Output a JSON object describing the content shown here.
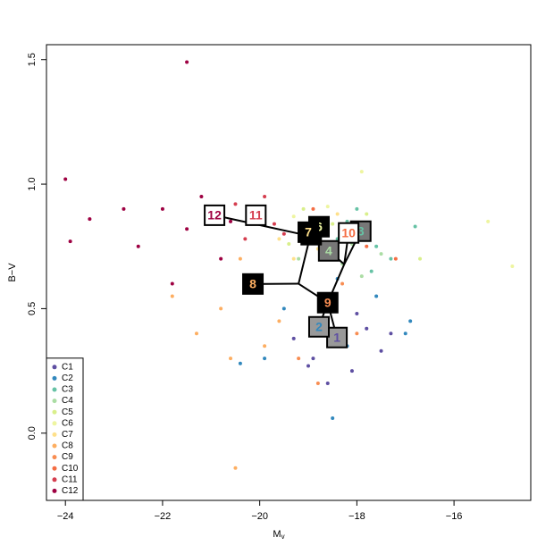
{
  "chart_data": {
    "type": "scatter",
    "xlabel": "M",
    "xlabel_sub": "v",
    "ylabel": "B−V",
    "xlim": [
      -24.39,
      -14.42
    ],
    "ylim": [
      -0.27,
      1.56
    ],
    "xticks": [
      {
        "value": -24,
        "label": "−24"
      },
      {
        "value": -22,
        "label": "−22"
      },
      {
        "value": -20,
        "label": "−20"
      },
      {
        "value": -18,
        "label": "−18"
      },
      {
        "value": -16,
        "label": "−16"
      }
    ],
    "yticks": [
      {
        "value": 0,
        "label": "0.0"
      },
      {
        "value": 0.5,
        "label": "0.5"
      },
      {
        "value": 1,
        "label": "1.0"
      },
      {
        "value": 1.5,
        "label": "1.5"
      }
    ],
    "legend": "bottomleft",
    "series": [
      {
        "name": "C1",
        "color": "#5E4FA2",
        "x": [
          -18.4,
          -18.9,
          -17.8,
          -18.1,
          -19.3,
          -17.5,
          -18.6,
          -18.0,
          -19.0,
          -17.3
        ],
        "values": [
          0.36,
          0.3,
          0.42,
          0.25,
          0.38,
          0.33,
          0.2,
          0.48,
          0.27,
          0.4
        ]
      },
      {
        "name": "C2",
        "color": "#3288BD",
        "x": [
          -18.8,
          -19.5,
          -18.2,
          -17.6,
          -19.9,
          -18.5,
          -16.9,
          -18.4,
          -20.4,
          -17.0
        ],
        "values": [
          0.44,
          0.5,
          0.35,
          0.55,
          0.3,
          0.06,
          0.45,
          0.62,
          0.28,
          0.4
        ]
      },
      {
        "name": "C3",
        "color": "#66C2A5",
        "x": [
          -17.9,
          -17.6,
          -18.2,
          -17.3,
          -18.0,
          -16.8,
          -17.7,
          -18.4
        ],
        "values": [
          0.8,
          0.75,
          0.85,
          0.7,
          0.9,
          0.83,
          0.65,
          0.78
        ]
      },
      {
        "name": "C4",
        "color": "#ABDDA4",
        "x": [
          -18.6,
          -18.3,
          -18.9,
          -17.9,
          -18.1,
          -17.5,
          -19.2
        ],
        "values": [
          0.73,
          0.68,
          0.78,
          0.63,
          0.76,
          0.72,
          0.7
        ]
      },
      {
        "name": "C5",
        "color": "#D9EF8B",
        "x": [
          -18.9,
          -18.5,
          -19.4,
          -17.8,
          -16.7,
          -18.7,
          -19.1
        ],
        "values": [
          0.8,
          0.84,
          0.76,
          0.88,
          0.7,
          0.72,
          0.9
        ]
      },
      {
        "name": "C6",
        "color": "#EEF5A0",
        "x": [
          -18.8,
          -19.3,
          -18.2,
          -17.9,
          -15.3,
          -14.8,
          -18.6
        ],
        "values": [
          0.83,
          0.87,
          0.79,
          1.05,
          0.85,
          0.67,
          0.91
        ]
      },
      {
        "name": "C7",
        "color": "#FEE08B",
        "x": [
          -19.0,
          -19.6,
          -18.4,
          -19.3,
          -18.8,
          -20.1
        ],
        "values": [
          0.81,
          0.78,
          0.88,
          0.7,
          0.74,
          0.85
        ]
      },
      {
        "name": "C8",
        "color": "#FDAE61",
        "x": [
          -20.1,
          -20.8,
          -21.3,
          -19.6,
          -20.4,
          -21.8,
          -19.9,
          -20.6,
          -20.5
        ],
        "values": [
          0.6,
          0.5,
          0.4,
          0.45,
          0.7,
          0.55,
          0.35,
          0.3,
          -0.14
        ]
      },
      {
        "name": "C9",
        "color": "#F88D52",
        "x": [
          -18.6,
          -18.9,
          -18.3,
          -19.2,
          -18.0,
          -18.8
        ],
        "values": [
          0.52,
          0.45,
          0.6,
          0.3,
          0.4,
          0.2
        ]
      },
      {
        "name": "C10",
        "color": "#F46D43",
        "x": [
          -18.2,
          -18.6,
          -17.8,
          -18.9,
          -17.2
        ],
        "values": [
          0.8,
          0.86,
          0.75,
          0.9,
          0.7
        ]
      },
      {
        "name": "C11",
        "color": "#D53E4F",
        "x": [
          -20.1,
          -19.7,
          -20.5,
          -19.5,
          -20.8,
          -19.9,
          -20.3
        ],
        "values": [
          0.88,
          0.84,
          0.92,
          0.8,
          0.87,
          0.95,
          0.78
        ]
      },
      {
        "name": "C12",
        "color": "#9E0142",
        "x": [
          -21,
          -21.5,
          -22,
          -20.6,
          -21.8,
          -22.8,
          -23.9,
          -24.0,
          -21.5,
          -22.5,
          -21.2,
          -20.8,
          -23.5
        ],
        "values": [
          0.87,
          0.82,
          0.9,
          0.85,
          0.6,
          0.9,
          0.77,
          1.02,
          1.49,
          0.75,
          0.95,
          0.7,
          0.86
        ]
      }
    ],
    "tree_segments": [
      [
        -20.93,
        0.875,
        -19.05,
        0.795
      ],
      [
        -20.14,
        0.599,
        -19.2,
        0.6
      ],
      [
        -19.2,
        0.6,
        -18.95,
        0.8
      ],
      [
        -19.2,
        0.6,
        -18.6,
        0.524
      ],
      [
        -18.6,
        0.524,
        -18.26,
        0.678
      ],
      [
        -18.26,
        0.678,
        -18.58,
        0.732
      ],
      [
        -18.26,
        0.678,
        -18.17,
        0.804
      ],
      [
        -18.26,
        0.678,
        -17.92,
        0.811
      ],
      [
        -18.6,
        0.524,
        -18.78,
        0.427
      ],
      [
        -18.6,
        0.524,
        -18.41,
        0.384
      ]
    ],
    "nodes": [
      {
        "label": "1",
        "x": -18.41,
        "y": 0.384,
        "fill": "#999999",
        "color": "#5E4FA2"
      },
      {
        "label": "2",
        "x": -18.78,
        "y": 0.427,
        "fill": "#999999",
        "color": "#3288BD"
      },
      {
        "label": "3",
        "x": -17.92,
        "y": 0.811,
        "fill": "#777777",
        "color": "#66C2A5"
      },
      {
        "label": "4",
        "x": -18.58,
        "y": 0.732,
        "fill": "#777777",
        "color": "#ABDDA4"
      },
      {
        "label": "5",
        "x": -18.94,
        "y": 0.797,
        "fill": "#000000",
        "color": "#D9EF8B"
      },
      {
        "label": "6",
        "x": -18.78,
        "y": 0.829,
        "fill": "#000000",
        "color": "#EEF5A0"
      },
      {
        "label": "7",
        "x": -19.0,
        "y": 0.807,
        "fill": "#000000",
        "color": "#FEE08B"
      },
      {
        "label": "8",
        "x": -20.14,
        "y": 0.599,
        "fill": "#000000",
        "color": "#FDAE61"
      },
      {
        "label": "9",
        "x": -18.6,
        "y": 0.524,
        "fill": "#000000",
        "color": "#F88D52"
      },
      {
        "label": "10",
        "x": -18.17,
        "y": 0.804,
        "fill": "#ffffff",
        "color": "#F46D43"
      },
      {
        "label": "11",
        "x": -20.08,
        "y": 0.875,
        "fill": "#ffffff",
        "color": "#D53E4F"
      },
      {
        "label": "12",
        "x": -20.93,
        "y": 0.875,
        "fill": "#ffffff",
        "color": "#9E0142"
      }
    ]
  }
}
